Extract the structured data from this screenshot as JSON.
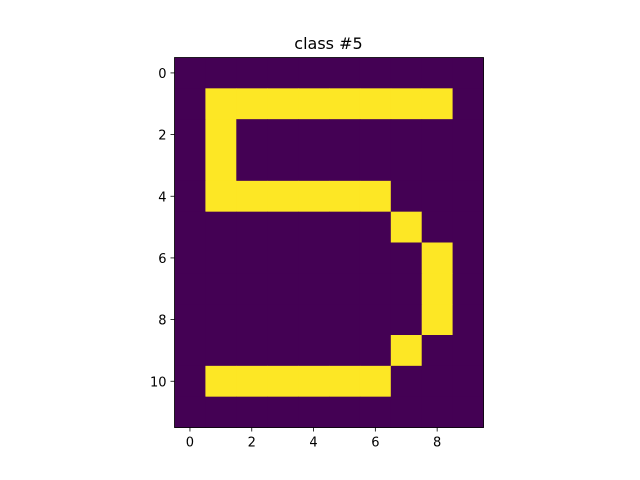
{
  "chart_data": {
    "type": "heatmap",
    "title": "class #5",
    "xlabel": "",
    "ylabel": "",
    "colormap": "viridis",
    "colors": {
      "low": "#440154",
      "high": "#fde725",
      "axis": "#000000",
      "background": "#ffffff"
    },
    "value_range": [
      0,
      1
    ],
    "xlim": [
      -0.5,
      9.5
    ],
    "ylim": [
      11.5,
      -0.5
    ],
    "x_ticks": [
      0,
      2,
      4,
      6,
      8
    ],
    "y_ticks": [
      0,
      2,
      4,
      6,
      8,
      10
    ],
    "x_tick_labels": [
      "0",
      "2",
      "4",
      "6",
      "8"
    ],
    "y_tick_labels": [
      "0",
      "2",
      "4",
      "6",
      "8",
      "10"
    ],
    "grid": false,
    "rows": 12,
    "cols": 10,
    "matrix": [
      [
        0,
        0,
        0,
        0,
        0,
        0,
        0,
        0,
        0,
        0
      ],
      [
        0,
        1,
        1,
        1,
        1,
        1,
        1,
        1,
        1,
        0
      ],
      [
        0,
        1,
        0,
        0,
        0,
        0,
        0,
        0,
        0,
        0
      ],
      [
        0,
        1,
        0,
        0,
        0,
        0,
        0,
        0,
        0,
        0
      ],
      [
        0,
        1,
        1,
        1,
        1,
        1,
        1,
        0,
        0,
        0
      ],
      [
        0,
        0,
        0,
        0,
        0,
        0,
        0,
        1,
        0,
        0
      ],
      [
        0,
        0,
        0,
        0,
        0,
        0,
        0,
        0,
        1,
        0
      ],
      [
        0,
        0,
        0,
        0,
        0,
        0,
        0,
        0,
        1,
        0
      ],
      [
        0,
        0,
        0,
        0,
        0,
        0,
        0,
        0,
        1,
        0
      ],
      [
        0,
        0,
        0,
        0,
        0,
        0,
        0,
        1,
        0,
        0
      ],
      [
        0,
        1,
        1,
        1,
        1,
        1,
        1,
        0,
        0,
        0
      ],
      [
        0,
        0,
        0,
        0,
        0,
        0,
        0,
        0,
        0,
        0
      ]
    ]
  }
}
